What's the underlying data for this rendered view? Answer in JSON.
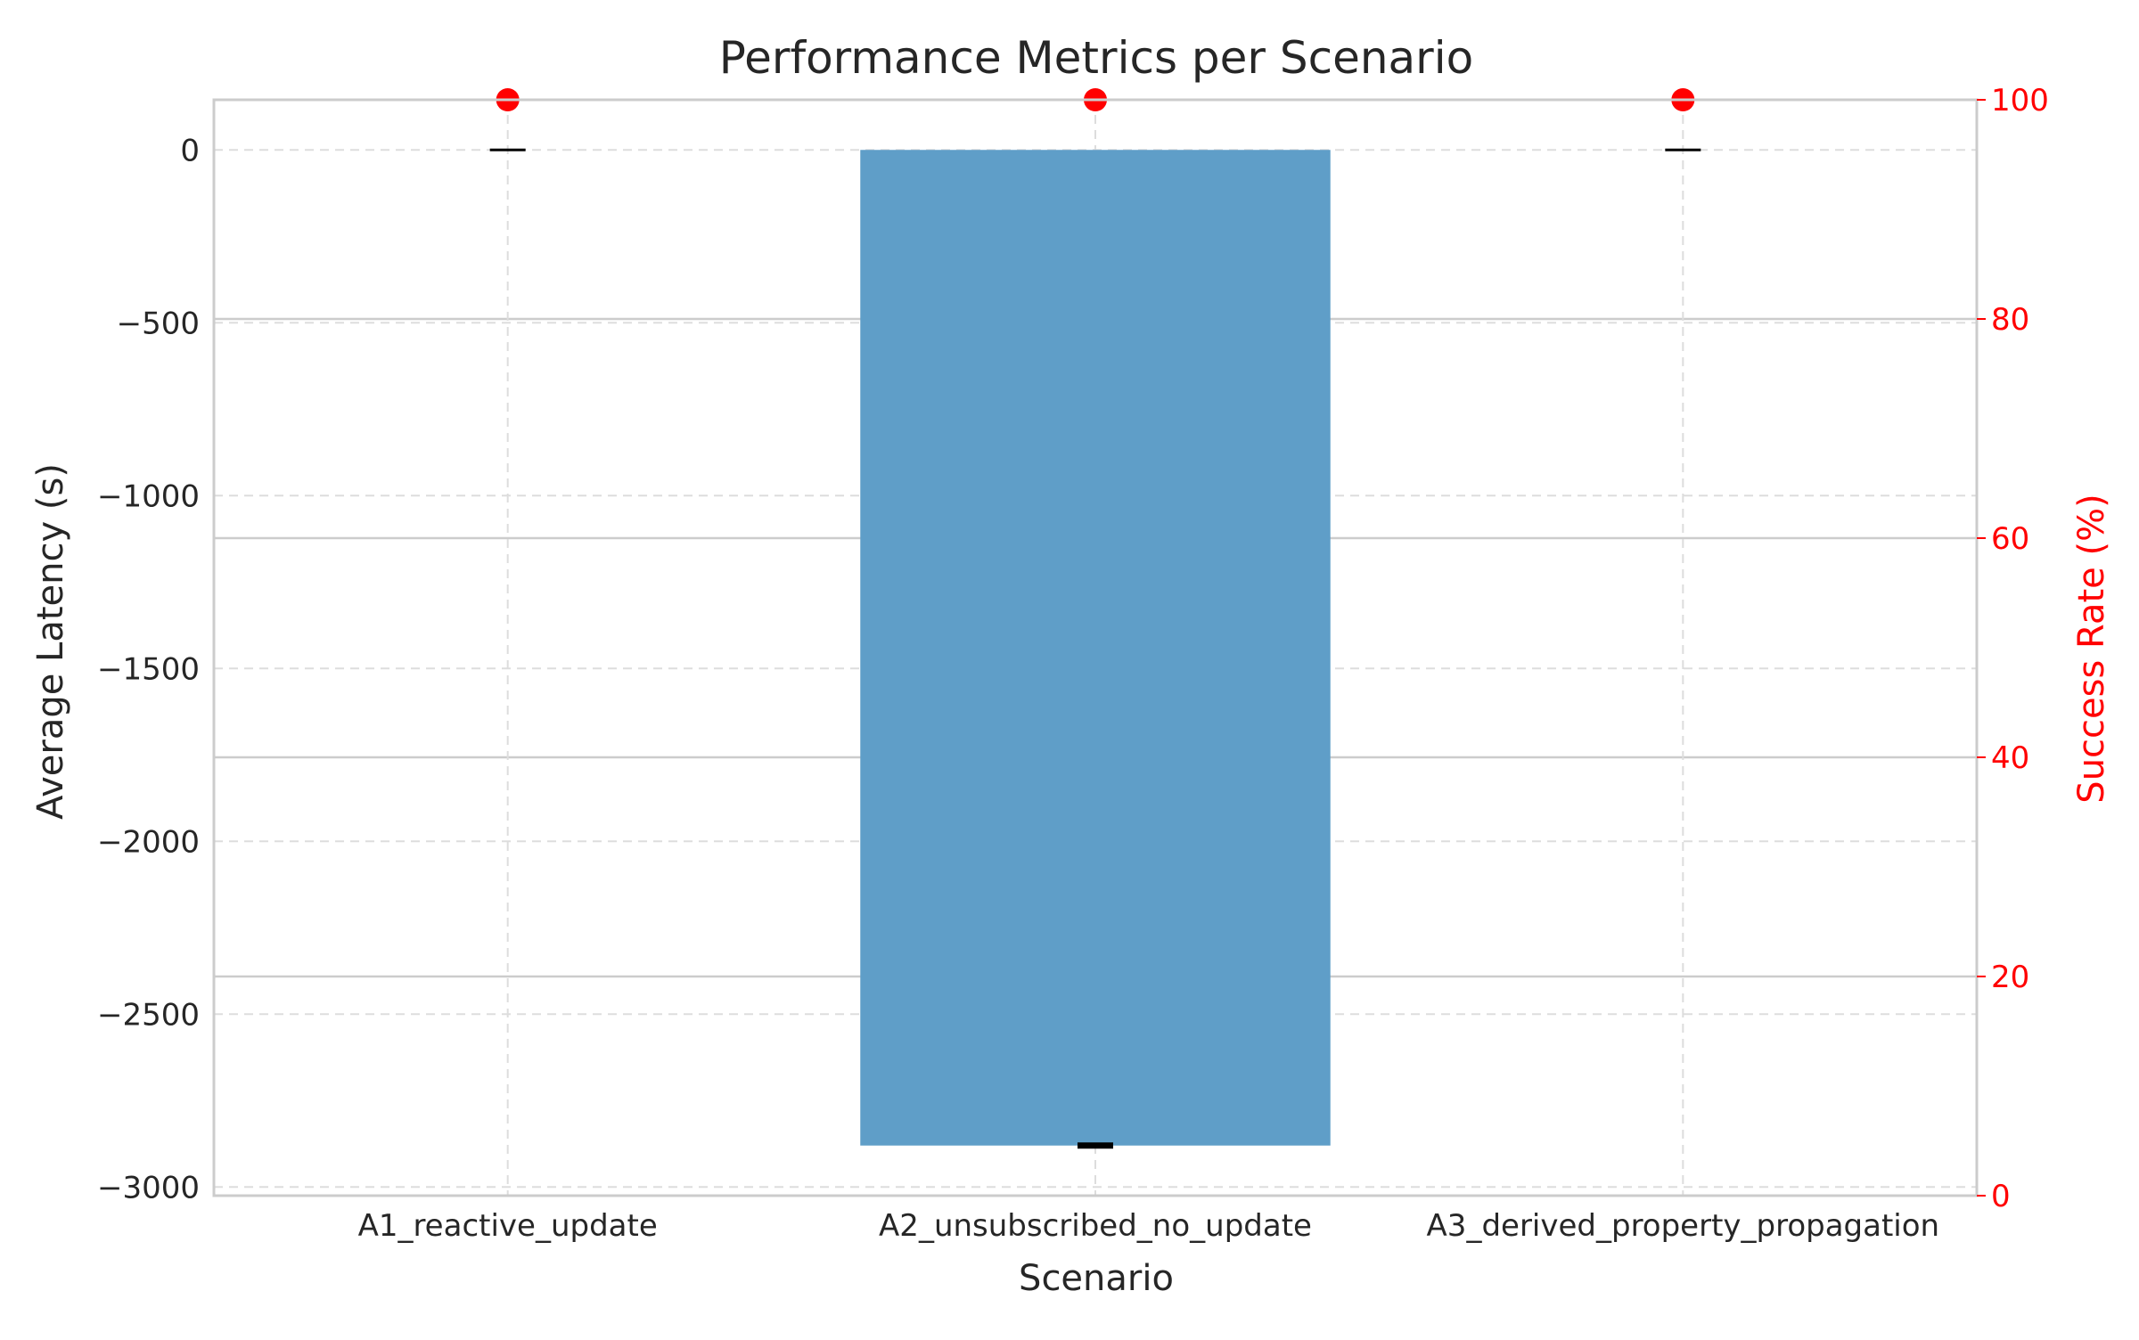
{
  "chart_data": {
    "type": "bar",
    "title": "Performance Metrics per Scenario",
    "xlabel": "Scenario",
    "ylabel": "Average Latency (s)",
    "y2label": "Success Rate (%)",
    "categories": [
      "A1_reactive_update",
      "A2_unsubscribed_no_update",
      "A3_derived_property_propagation"
    ],
    "series": [
      {
        "values": [
          0,
          -2880,
          0
        ],
        "color": "#5f9ec8"
      },
      {
        "values": [
          100,
          100,
          100
        ],
        "color": "#ff0000",
        "axis": "right"
      }
    ],
    "error_caps": [
      0,
      -2880,
      0
    ],
    "ylim": [
      -3025,
      145
    ],
    "y2lim": [
      0,
      100
    ],
    "yticks": [
      0,
      -500,
      -1000,
      -1500,
      -2000,
      -2500,
      -3000
    ],
    "ytick_labels": [
      "0",
      "−500",
      "−1000",
      "−1500",
      "−2000",
      "−2500",
      "−3000"
    ],
    "y2ticks": [
      0,
      20,
      40,
      60,
      80,
      100
    ],
    "y2tick_labels": [
      "0",
      "20",
      "40",
      "60",
      "80",
      "100"
    ],
    "grid": true,
    "colors": {
      "secondary_axis": "#ff0000",
      "axis_text": "#262626",
      "frame": "#cccccc"
    }
  }
}
